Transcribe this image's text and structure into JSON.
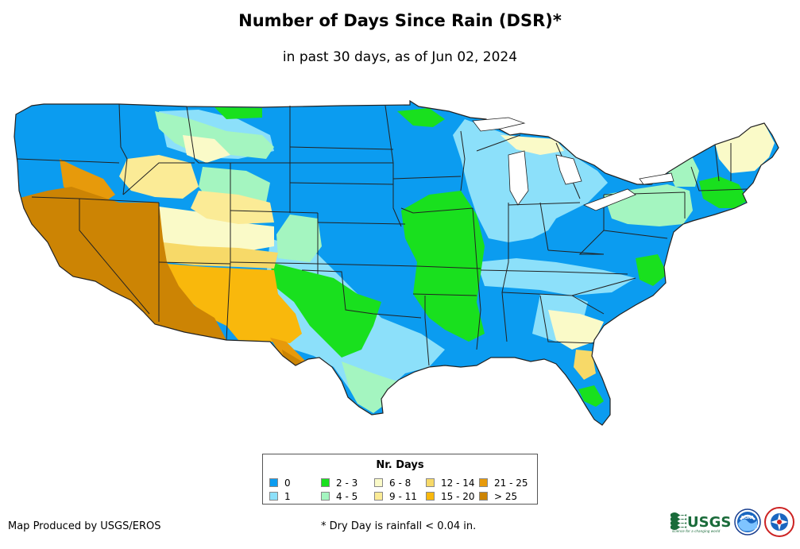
{
  "title": "Number of Days Since Rain (DSR)*",
  "subtitle": "in past 30 days, as of Jun 02, 2024",
  "legend": {
    "title": "Nr. Days",
    "items": [
      {
        "label": "0",
        "color": "#0b9cf0"
      },
      {
        "label": "1",
        "color": "#8ce0fa"
      },
      {
        "label": "2 - 3",
        "color": "#19e01e"
      },
      {
        "label": "4 - 5",
        "color": "#a4f5c0"
      },
      {
        "label": "6 - 8",
        "color": "#fafac8"
      },
      {
        "label": "9 - 11",
        "color": "#fbeb96"
      },
      {
        "label": "12 - 14",
        "color": "#f7d968"
      },
      {
        "label": "15 - 20",
        "color": "#f9b80c"
      },
      {
        "label": "21 - 25",
        "color": "#e79a0b"
      },
      {
        "label": "> 25",
        "color": "#cc8404"
      }
    ]
  },
  "credit": "Map Produced by USGS/EROS",
  "footnote": "* Dry Day is rainfall < 0.04 in.",
  "logos": {
    "usgs_text": "USGS",
    "usgs_tagline": "science for a changing world",
    "noaa_text": "NOAA"
  },
  "map": {
    "background": "#0b9cf0",
    "region": "Contiguous United States",
    "state_line_color": "#222222"
  }
}
